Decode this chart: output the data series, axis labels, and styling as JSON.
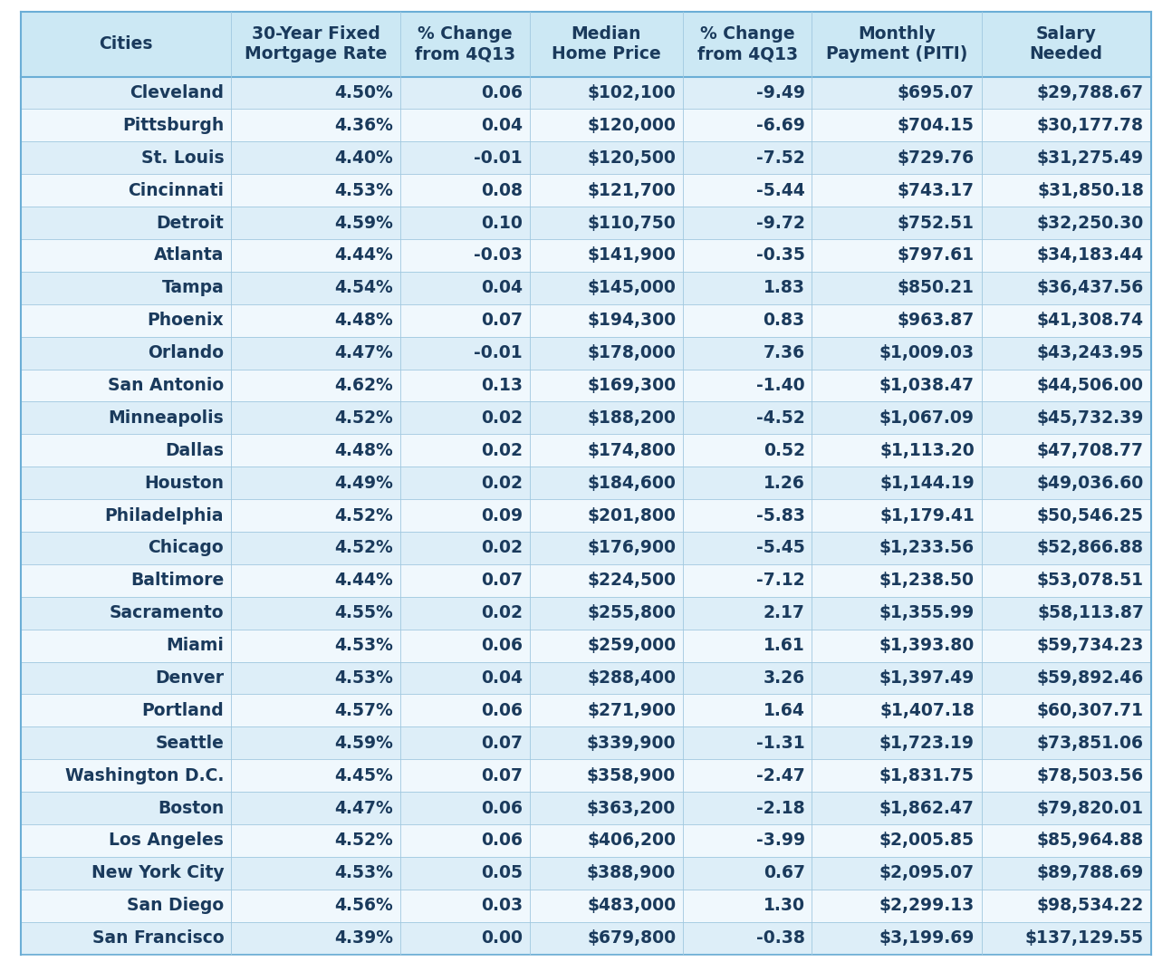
{
  "columns": [
    "Cities",
    "30-Year Fixed\nMortgage Rate",
    "% Change\nfrom 4Q13",
    "Median\nHome Price",
    "% Change\nfrom 4Q13",
    "Monthly\nPayment (PITI)",
    "Salary\nNeeded"
  ],
  "col_alignments": [
    "right",
    "right",
    "right",
    "right",
    "right",
    "right",
    "right"
  ],
  "col_header_alignments": [
    "center",
    "center",
    "center",
    "center",
    "center",
    "center",
    "center"
  ],
  "rows": [
    [
      "Cleveland",
      "4.50%",
      "0.06",
      "$102,100",
      "-9.49",
      "$695.07",
      "$29,788.67"
    ],
    [
      "Pittsburgh",
      "4.36%",
      "0.04",
      "$120,000",
      "-6.69",
      "$704.15",
      "$30,177.78"
    ],
    [
      "St. Louis",
      "4.40%",
      "-0.01",
      "$120,500",
      "-7.52",
      "$729.76",
      "$31,275.49"
    ],
    [
      "Cincinnati",
      "4.53%",
      "0.08",
      "$121,700",
      "-5.44",
      "$743.17",
      "$31,850.18"
    ],
    [
      "Detroit",
      "4.59%",
      "0.10",
      "$110,750",
      "-9.72",
      "$752.51",
      "$32,250.30"
    ],
    [
      "Atlanta",
      "4.44%",
      "-0.03",
      "$141,900",
      "-0.35",
      "$797.61",
      "$34,183.44"
    ],
    [
      "Tampa",
      "4.54%",
      "0.04",
      "$145,000",
      "1.83",
      "$850.21",
      "$36,437.56"
    ],
    [
      "Phoenix",
      "4.48%",
      "0.07",
      "$194,300",
      "0.83",
      "$963.87",
      "$41,308.74"
    ],
    [
      "Orlando",
      "4.47%",
      "-0.01",
      "$178,000",
      "7.36",
      "$1,009.03",
      "$43,243.95"
    ],
    [
      "San Antonio",
      "4.62%",
      "0.13",
      "$169,300",
      "-1.40",
      "$1,038.47",
      "$44,506.00"
    ],
    [
      "Minneapolis",
      "4.52%",
      "0.02",
      "$188,200",
      "-4.52",
      "$1,067.09",
      "$45,732.39"
    ],
    [
      "Dallas",
      "4.48%",
      "0.02",
      "$174,800",
      "0.52",
      "$1,113.20",
      "$47,708.77"
    ],
    [
      "Houston",
      "4.49%",
      "0.02",
      "$184,600",
      "1.26",
      "$1,144.19",
      "$49,036.60"
    ],
    [
      "Philadelphia",
      "4.52%",
      "0.09",
      "$201,800",
      "-5.83",
      "$1,179.41",
      "$50,546.25"
    ],
    [
      "Chicago",
      "4.52%",
      "0.02",
      "$176,900",
      "-5.45",
      "$1,233.56",
      "$52,866.88"
    ],
    [
      "Baltimore",
      "4.44%",
      "0.07",
      "$224,500",
      "-7.12",
      "$1,238.50",
      "$53,078.51"
    ],
    [
      "Sacramento",
      "4.55%",
      "0.02",
      "$255,800",
      "2.17",
      "$1,355.99",
      "$58,113.87"
    ],
    [
      "Miami",
      "4.53%",
      "0.06",
      "$259,000",
      "1.61",
      "$1,393.80",
      "$59,734.23"
    ],
    [
      "Denver",
      "4.53%",
      "0.04",
      "$288,400",
      "3.26",
      "$1,397.49",
      "$59,892.46"
    ],
    [
      "Portland",
      "4.57%",
      "0.06",
      "$271,900",
      "1.64",
      "$1,407.18",
      "$60,307.71"
    ],
    [
      "Seattle",
      "4.59%",
      "0.07",
      "$339,900",
      "-1.31",
      "$1,723.19",
      "$73,851.06"
    ],
    [
      "Washington D.C.",
      "4.45%",
      "0.07",
      "$358,900",
      "-2.47",
      "$1,831.75",
      "$78,503.56"
    ],
    [
      "Boston",
      "4.47%",
      "0.06",
      "$363,200",
      "-2.18",
      "$1,862.47",
      "$79,820.01"
    ],
    [
      "Los Angeles",
      "4.52%",
      "0.06",
      "$406,200",
      "-3.99",
      "$2,005.85",
      "$85,964.88"
    ],
    [
      "New York City",
      "4.53%",
      "0.05",
      "$388,900",
      "0.67",
      "$2,095.07",
      "$89,788.69"
    ],
    [
      "San Diego",
      "4.56%",
      "0.03",
      "$483,000",
      "1.30",
      "$2,299.13",
      "$98,534.22"
    ],
    [
      "San Francisco",
      "4.39%",
      "0.00",
      "$679,800",
      "-0.38",
      "$3,199.69",
      "$137,129.55"
    ]
  ],
  "header_bg": "#cce8f4",
  "row_bg_even": "#ddeef8",
  "row_bg_odd": "#f0f8fd",
  "text_color": "#1a3a5c",
  "border_color": "#a0c8e0",
  "outer_border_color": "#6baed6",
  "fig_bg": "#ffffff",
  "font_size": 13.5,
  "header_font_size": 13.5,
  "col_widths_rel": [
    1.3,
    1.05,
    0.8,
    0.95,
    0.8,
    1.05,
    1.05
  ]
}
